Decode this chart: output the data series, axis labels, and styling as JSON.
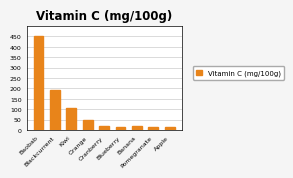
{
  "title": "Vitamin C (mg/100g)",
  "categories": [
    "Baobab",
    "Blackcurrent",
    "Kiwi",
    "Orange",
    "Cranberry",
    "Blueberry",
    "Banana",
    "Pomegranate",
    "Apple"
  ],
  "values": [
    450,
    190,
    105,
    50,
    20,
    15,
    20,
    15,
    15
  ],
  "bar_color": "#E8841A",
  "legend_label": "Vitamin C (mg/100g)",
  "ylim": [
    0,
    500
  ],
  "yticks": [
    0,
    50,
    100,
    150,
    200,
    250,
    300,
    350,
    400,
    450
  ],
  "background_color": "#e8e8e8",
  "plot_bg_color": "#ffffff",
  "figure_bg_color": "#f5f5f5",
  "title_fontsize": 8.5,
  "tick_fontsize": 4.5,
  "legend_fontsize": 5.0
}
